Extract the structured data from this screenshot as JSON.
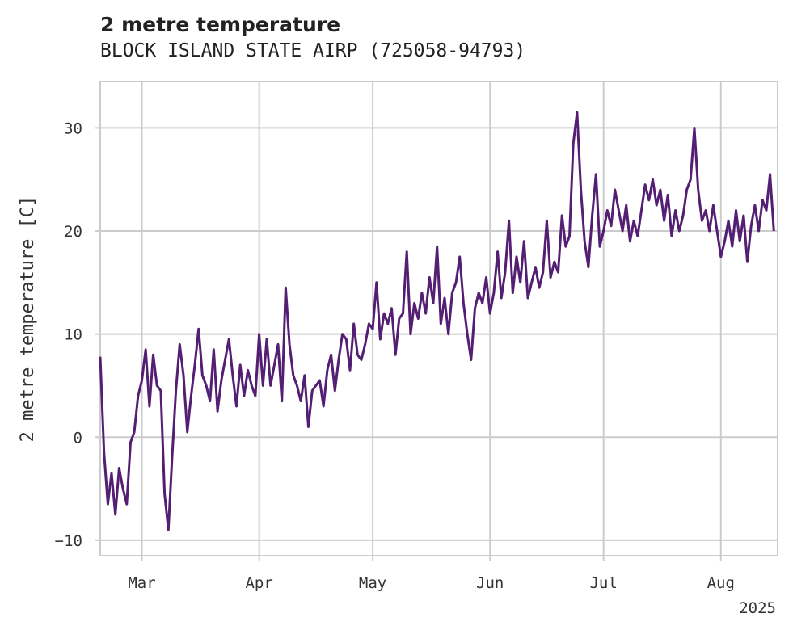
{
  "chart_data": {
    "type": "line",
    "title": "2 metre temperature",
    "subtitle": "BLOCK ISLAND STATE AIRP (725058-94793)",
    "xlabel": "",
    "ylabel": "2 metre temperature [C]",
    "ylim": [
      -11.5,
      34.5
    ],
    "xlim": [
      "2025-02-18",
      "2025-08-16"
    ],
    "grid": true,
    "yticks": [
      -10,
      0,
      10,
      20,
      30
    ],
    "xticks": [
      {
        "date": "2025-03-01",
        "label": "Mar"
      },
      {
        "date": "2025-04-01",
        "label": "Apr"
      },
      {
        "date": "2025-05-01",
        "label": "May"
      },
      {
        "date": "2025-06-01",
        "label": "Jun"
      },
      {
        "date": "2025-07-01",
        "label": "Jul"
      },
      {
        "date": "2025-08-01",
        "label": "Aug"
      }
    ],
    "xaxis_year_label": "2025",
    "series": [
      {
        "color": "#541f73",
        "points": [
          [
            "2025-02-18",
            7.8
          ],
          [
            "2025-02-19",
            -1.5
          ],
          [
            "2025-02-20",
            -6.5
          ],
          [
            "2025-02-21",
            -3.5
          ],
          [
            "2025-02-22",
            -7.5
          ],
          [
            "2025-02-23",
            -3.0
          ],
          [
            "2025-02-24",
            -5.0
          ],
          [
            "2025-02-25",
            -6.5
          ],
          [
            "2025-02-26",
            -0.5
          ],
          [
            "2025-02-27",
            0.5
          ],
          [
            "2025-02-28",
            4.0
          ],
          [
            "2025-03-01",
            5.5
          ],
          [
            "2025-03-02",
            8.5
          ],
          [
            "2025-03-03",
            3.0
          ],
          [
            "2025-03-04",
            8.0
          ],
          [
            "2025-03-05",
            5.0
          ],
          [
            "2025-03-06",
            4.5
          ],
          [
            "2025-03-07",
            -5.5
          ],
          [
            "2025-03-08",
            -9.0
          ],
          [
            "2025-03-09",
            -2.0
          ],
          [
            "2025-03-10",
            4.5
          ],
          [
            "2025-03-11",
            9.0
          ],
          [
            "2025-03-12",
            6.0
          ],
          [
            "2025-03-13",
            0.5
          ],
          [
            "2025-03-14",
            4.0
          ],
          [
            "2025-03-15",
            7.0
          ],
          [
            "2025-03-16",
            10.5
          ],
          [
            "2025-03-17",
            6.0
          ],
          [
            "2025-03-18",
            5.0
          ],
          [
            "2025-03-19",
            3.5
          ],
          [
            "2025-03-20",
            8.5
          ],
          [
            "2025-03-21",
            2.5
          ],
          [
            "2025-03-22",
            5.5
          ],
          [
            "2025-03-23",
            7.5
          ],
          [
            "2025-03-24",
            9.5
          ],
          [
            "2025-03-25",
            6.0
          ],
          [
            "2025-03-26",
            3.0
          ],
          [
            "2025-03-27",
            7.0
          ],
          [
            "2025-03-28",
            4.0
          ],
          [
            "2025-03-29",
            6.5
          ],
          [
            "2025-03-30",
            5.0
          ],
          [
            "2025-03-31",
            4.0
          ],
          [
            "2025-04-01",
            10.0
          ],
          [
            "2025-04-02",
            5.0
          ],
          [
            "2025-04-03",
            9.5
          ],
          [
            "2025-04-04",
            5.0
          ],
          [
            "2025-04-05",
            7.0
          ],
          [
            "2025-04-06",
            9.0
          ],
          [
            "2025-04-07",
            3.5
          ],
          [
            "2025-04-08",
            14.5
          ],
          [
            "2025-04-09",
            9.0
          ],
          [
            "2025-04-10",
            6.0
          ],
          [
            "2025-04-11",
            5.0
          ],
          [
            "2025-04-12",
            3.5
          ],
          [
            "2025-04-13",
            6.0
          ],
          [
            "2025-04-14",
            1.0
          ],
          [
            "2025-04-15",
            4.5
          ],
          [
            "2025-04-16",
            5.0
          ],
          [
            "2025-04-17",
            5.5
          ],
          [
            "2025-04-18",
            3.0
          ],
          [
            "2025-04-19",
            6.5
          ],
          [
            "2025-04-20",
            8.0
          ],
          [
            "2025-04-21",
            4.5
          ],
          [
            "2025-04-22",
            7.5
          ],
          [
            "2025-04-23",
            10.0
          ],
          [
            "2025-04-24",
            9.5
          ],
          [
            "2025-04-25",
            6.5
          ],
          [
            "2025-04-26",
            11.0
          ],
          [
            "2025-04-27",
            8.0
          ],
          [
            "2025-04-28",
            7.5
          ],
          [
            "2025-04-29",
            9.0
          ],
          [
            "2025-04-30",
            11.0
          ],
          [
            "2025-05-01",
            10.5
          ],
          [
            "2025-05-02",
            15.0
          ],
          [
            "2025-05-03",
            9.5
          ],
          [
            "2025-05-04",
            12.0
          ],
          [
            "2025-05-05",
            11.0
          ],
          [
            "2025-05-06",
            12.5
          ],
          [
            "2025-05-07",
            8.0
          ],
          [
            "2025-05-08",
            11.5
          ],
          [
            "2025-05-09",
            12.0
          ],
          [
            "2025-05-10",
            18.0
          ],
          [
            "2025-05-11",
            10.0
          ],
          [
            "2025-05-12",
            13.0
          ],
          [
            "2025-05-13",
            11.5
          ],
          [
            "2025-05-14",
            14.0
          ],
          [
            "2025-05-15",
            12.0
          ],
          [
            "2025-05-16",
            15.5
          ],
          [
            "2025-05-17",
            13.0
          ],
          [
            "2025-05-18",
            18.5
          ],
          [
            "2025-05-19",
            11.0
          ],
          [
            "2025-05-20",
            13.5
          ],
          [
            "2025-05-21",
            10.0
          ],
          [
            "2025-05-22",
            14.0
          ],
          [
            "2025-05-23",
            15.0
          ],
          [
            "2025-05-24",
            17.5
          ],
          [
            "2025-05-25",
            13.0
          ],
          [
            "2025-05-26",
            10.0
          ],
          [
            "2025-05-27",
            7.5
          ],
          [
            "2025-05-28",
            12.5
          ],
          [
            "2025-05-29",
            14.0
          ],
          [
            "2025-05-30",
            13.0
          ],
          [
            "2025-05-31",
            15.5
          ],
          [
            "2025-06-01",
            12.0
          ],
          [
            "2025-06-02",
            14.0
          ],
          [
            "2025-06-03",
            18.0
          ],
          [
            "2025-06-04",
            13.5
          ],
          [
            "2025-06-05",
            16.0
          ],
          [
            "2025-06-06",
            21.0
          ],
          [
            "2025-06-07",
            14.0
          ],
          [
            "2025-06-08",
            17.5
          ],
          [
            "2025-06-09",
            15.0
          ],
          [
            "2025-06-10",
            19.0
          ],
          [
            "2025-06-11",
            13.5
          ],
          [
            "2025-06-12",
            15.0
          ],
          [
            "2025-06-13",
            16.5
          ],
          [
            "2025-06-14",
            14.5
          ],
          [
            "2025-06-15",
            16.0
          ],
          [
            "2025-06-16",
            21.0
          ],
          [
            "2025-06-17",
            15.5
          ],
          [
            "2025-06-18",
            17.0
          ],
          [
            "2025-06-19",
            16.0
          ],
          [
            "2025-06-20",
            21.5
          ],
          [
            "2025-06-21",
            18.5
          ],
          [
            "2025-06-22",
            19.5
          ],
          [
            "2025-06-23",
            28.5
          ],
          [
            "2025-06-24",
            31.5
          ],
          [
            "2025-06-25",
            24.0
          ],
          [
            "2025-06-26",
            19.0
          ],
          [
            "2025-06-27",
            16.5
          ],
          [
            "2025-06-28",
            21.5
          ],
          [
            "2025-06-29",
            25.5
          ],
          [
            "2025-06-30",
            18.5
          ],
          [
            "2025-07-01",
            20.0
          ],
          [
            "2025-07-02",
            22.0
          ],
          [
            "2025-07-03",
            20.5
          ],
          [
            "2025-07-04",
            24.0
          ],
          [
            "2025-07-05",
            22.0
          ],
          [
            "2025-07-06",
            20.0
          ],
          [
            "2025-07-07",
            22.5
          ],
          [
            "2025-07-08",
            19.0
          ],
          [
            "2025-07-09",
            21.0
          ],
          [
            "2025-07-10",
            19.5
          ],
          [
            "2025-07-11",
            22.0
          ],
          [
            "2025-07-12",
            24.5
          ],
          [
            "2025-07-13",
            23.0
          ],
          [
            "2025-07-14",
            25.0
          ],
          [
            "2025-07-15",
            22.5
          ],
          [
            "2025-07-16",
            24.0
          ],
          [
            "2025-07-17",
            21.0
          ],
          [
            "2025-07-18",
            23.5
          ],
          [
            "2025-07-19",
            19.5
          ],
          [
            "2025-07-20",
            22.0
          ],
          [
            "2025-07-21",
            20.0
          ],
          [
            "2025-07-22",
            21.5
          ],
          [
            "2025-07-23",
            24.0
          ],
          [
            "2025-07-24",
            25.0
          ],
          [
            "2025-07-25",
            30.0
          ],
          [
            "2025-07-26",
            24.0
          ],
          [
            "2025-07-27",
            21.0
          ],
          [
            "2025-07-28",
            22.0
          ],
          [
            "2025-07-29",
            20.0
          ],
          [
            "2025-07-30",
            22.5
          ],
          [
            "2025-07-31",
            20.0
          ],
          [
            "2025-08-01",
            17.5
          ],
          [
            "2025-08-02",
            19.0
          ],
          [
            "2025-08-03",
            21.0
          ],
          [
            "2025-08-04",
            18.5
          ],
          [
            "2025-08-05",
            22.0
          ],
          [
            "2025-08-06",
            19.0
          ],
          [
            "2025-08-07",
            21.5
          ],
          [
            "2025-08-08",
            17.0
          ],
          [
            "2025-08-09",
            20.5
          ],
          [
            "2025-08-10",
            22.5
          ],
          [
            "2025-08-11",
            20.0
          ],
          [
            "2025-08-12",
            23.0
          ],
          [
            "2025-08-13",
            22.0
          ],
          [
            "2025-08-14",
            25.5
          ],
          [
            "2025-08-15",
            20.0
          ]
        ]
      }
    ]
  }
}
